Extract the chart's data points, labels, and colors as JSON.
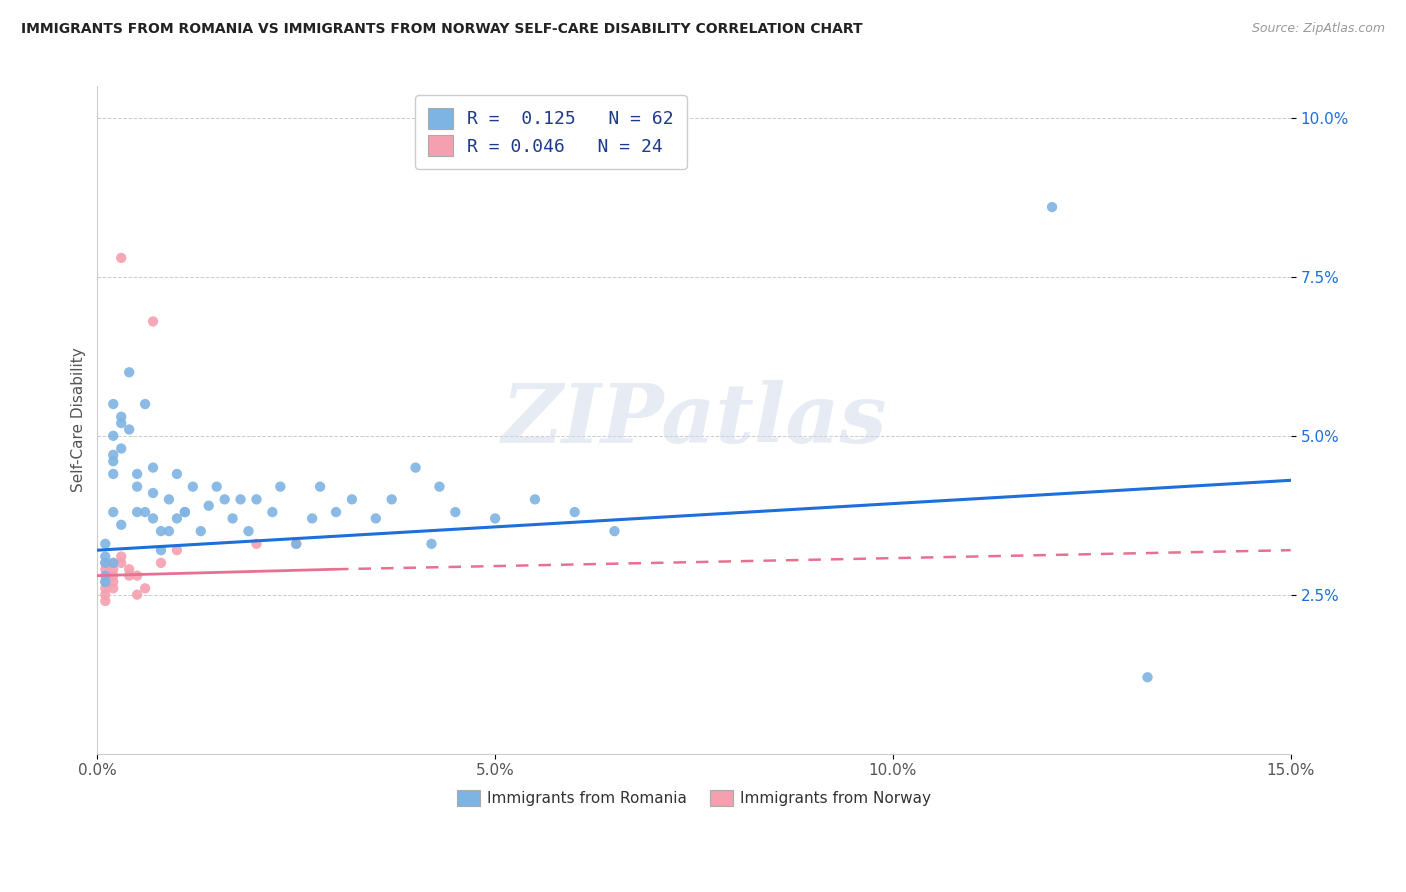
{
  "title": "IMMIGRANTS FROM ROMANIA VS IMMIGRANTS FROM NORWAY SELF-CARE DISABILITY CORRELATION CHART",
  "source": "Source: ZipAtlas.com",
  "ylabel": "Self-Care Disability",
  "xlim": [
    0.0,
    0.15
  ],
  "ylim": [
    0.0,
    0.105
  ],
  "xticks": [
    0.0,
    0.05,
    0.1,
    0.15
  ],
  "xtick_labels": [
    "0.0%",
    "5.0%",
    "10.0%",
    "15.0%"
  ],
  "yticks": [
    0.025,
    0.05,
    0.075,
    0.1
  ],
  "ytick_labels": [
    "2.5%",
    "5.0%",
    "7.5%",
    "10.0%"
  ],
  "romania_color": "#7EB4E3",
  "norway_color": "#F4A0B0",
  "romania_line_color": "#1E6FD9",
  "norway_line_color": "#E87090",
  "romania_r": 0.125,
  "romania_n": 62,
  "norway_r": 0.046,
  "norway_n": 24,
  "romania_scatter_x": [
    0.001,
    0.001,
    0.001,
    0.001,
    0.001,
    0.002,
    0.002,
    0.002,
    0.002,
    0.002,
    0.002,
    0.002,
    0.003,
    0.003,
    0.003,
    0.003,
    0.004,
    0.004,
    0.005,
    0.005,
    0.005,
    0.006,
    0.006,
    0.007,
    0.007,
    0.007,
    0.008,
    0.008,
    0.009,
    0.009,
    0.01,
    0.01,
    0.011,
    0.011,
    0.012,
    0.013,
    0.014,
    0.015,
    0.016,
    0.017,
    0.018,
    0.019,
    0.02,
    0.022,
    0.023,
    0.025,
    0.027,
    0.028,
    0.03,
    0.032,
    0.035,
    0.037,
    0.04,
    0.042,
    0.043,
    0.045,
    0.05,
    0.055,
    0.06,
    0.065,
    0.12,
    0.132
  ],
  "romania_scatter_y": [
    0.03,
    0.031,
    0.027,
    0.028,
    0.033,
    0.038,
    0.044,
    0.03,
    0.047,
    0.055,
    0.046,
    0.05,
    0.048,
    0.052,
    0.036,
    0.053,
    0.051,
    0.06,
    0.038,
    0.042,
    0.044,
    0.038,
    0.055,
    0.041,
    0.037,
    0.045,
    0.035,
    0.032,
    0.035,
    0.04,
    0.044,
    0.037,
    0.038,
    0.038,
    0.042,
    0.035,
    0.039,
    0.042,
    0.04,
    0.037,
    0.04,
    0.035,
    0.04,
    0.038,
    0.042,
    0.033,
    0.037,
    0.042,
    0.038,
    0.04,
    0.037,
    0.04,
    0.045,
    0.033,
    0.042,
    0.038,
    0.037,
    0.04,
    0.038,
    0.035,
    0.086,
    0.012
  ],
  "norway_scatter_x": [
    0.001,
    0.001,
    0.001,
    0.001,
    0.001,
    0.001,
    0.002,
    0.002,
    0.002,
    0.002,
    0.002,
    0.003,
    0.003,
    0.003,
    0.004,
    0.004,
    0.005,
    0.005,
    0.006,
    0.007,
    0.008,
    0.01,
    0.02,
    0.025
  ],
  "norway_scatter_y": [
    0.024,
    0.026,
    0.029,
    0.025,
    0.027,
    0.03,
    0.026,
    0.029,
    0.027,
    0.03,
    0.028,
    0.078,
    0.03,
    0.031,
    0.028,
    0.029,
    0.025,
    0.028,
    0.026,
    0.068,
    0.03,
    0.032,
    0.033,
    0.033
  ],
  "romania_trendline": [
    0.032,
    0.043
  ],
  "norway_trendline_solid": [
    0.028,
    0.029
  ],
  "norway_trendline_dashed": [
    0.029,
    0.032
  ]
}
